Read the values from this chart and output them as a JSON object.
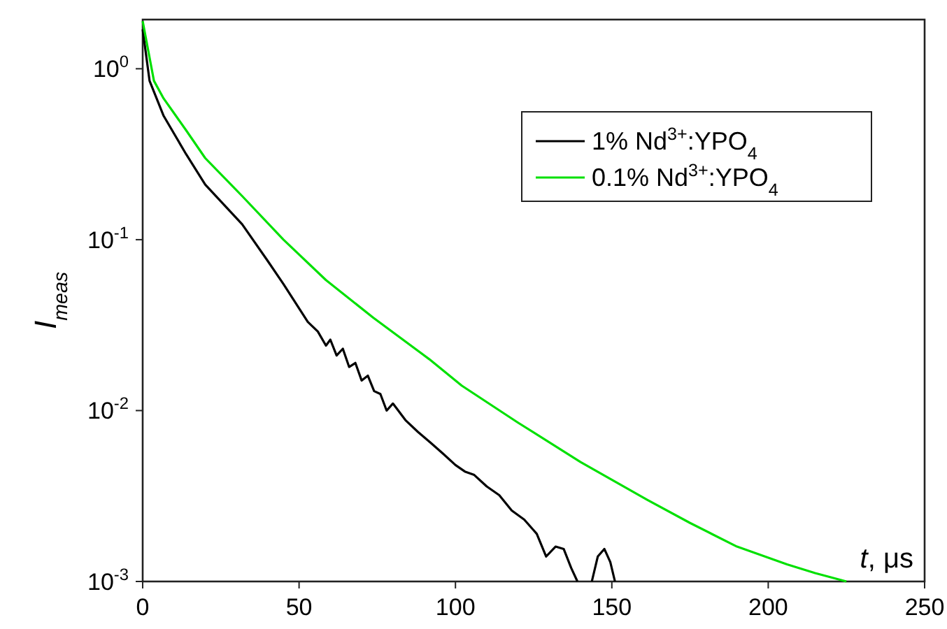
{
  "chart_data": {
    "type": "line",
    "xlabel": "t, μs",
    "ylabel": "I$_{meas}$",
    "xlim": [
      0,
      250
    ],
    "xticks": [
      0,
      50,
      100,
      150,
      200,
      250
    ],
    "ylim": [
      0.001,
      1.94
    ],
    "log": "y",
    "yticks": [
      {
        "value": 0.001,
        "label": "10$^{-3}$"
      },
      {
        "value": 0.01,
        "label": "10$^{-2}$"
      },
      {
        "value": 0.1,
        "label": "10$^{-1}$"
      },
      {
        "value": 1,
        "label": "10$^{0}$"
      }
    ],
    "grid": false,
    "legend": "top right",
    "marker": "none",
    "line_style": "solid",
    "series": [
      {
        "name": "1% Nd$^{3+}$:YPO$_{4}$",
        "color": "#000000",
        "x": [
          0,
          2.2,
          6.7,
          13.9,
          20,
          31.8,
          40,
          45,
          52.8,
          56,
          58.6,
          60,
          62,
          64,
          66,
          68,
          70,
          72,
          74,
          76,
          78,
          80,
          84,
          88,
          92,
          96,
          100,
          103,
          106,
          110,
          114,
          118,
          122,
          126,
          129,
          132,
          134.6,
          137,
          139,
          141,
          143.6,
          145.5,
          147.6,
          149.5,
          151
        ],
        "values": [
          1.7,
          0.85,
          0.53,
          0.316,
          0.21,
          0.123,
          0.075,
          0.055,
          0.033,
          0.029,
          0.024,
          0.026,
          0.021,
          0.023,
          0.018,
          0.019,
          0.015,
          0.016,
          0.013,
          0.0125,
          0.01,
          0.011,
          0.0088,
          0.0075,
          0.0065,
          0.0056,
          0.0048,
          0.0044,
          0.0042,
          0.0036,
          0.0032,
          0.0026,
          0.0023,
          0.0019,
          0.0014,
          0.0016,
          0.00155,
          0.0012,
          0.001,
          null,
          0.001,
          0.0014,
          0.00155,
          0.0013,
          0.001
        ]
      },
      {
        "name": "0.1% Nd$^{3+}$:YPO$_{4}$",
        "color": "#00e000",
        "x": [
          0,
          3.6,
          6.7,
          13.9,
          20,
          31.8,
          45,
          58.6,
          73.7,
          91.6,
          102,
          120,
          140,
          161.4,
          175,
          190,
          206,
          215,
          225
        ],
        "values": [
          1.9,
          0.85,
          0.67,
          0.436,
          0.3,
          0.18,
          0.1,
          0.058,
          0.035,
          0.02,
          0.014,
          0.0085,
          0.005,
          0.003,
          0.0022,
          0.0016,
          0.00126,
          0.00112,
          0.001
        ]
      }
    ]
  }
}
